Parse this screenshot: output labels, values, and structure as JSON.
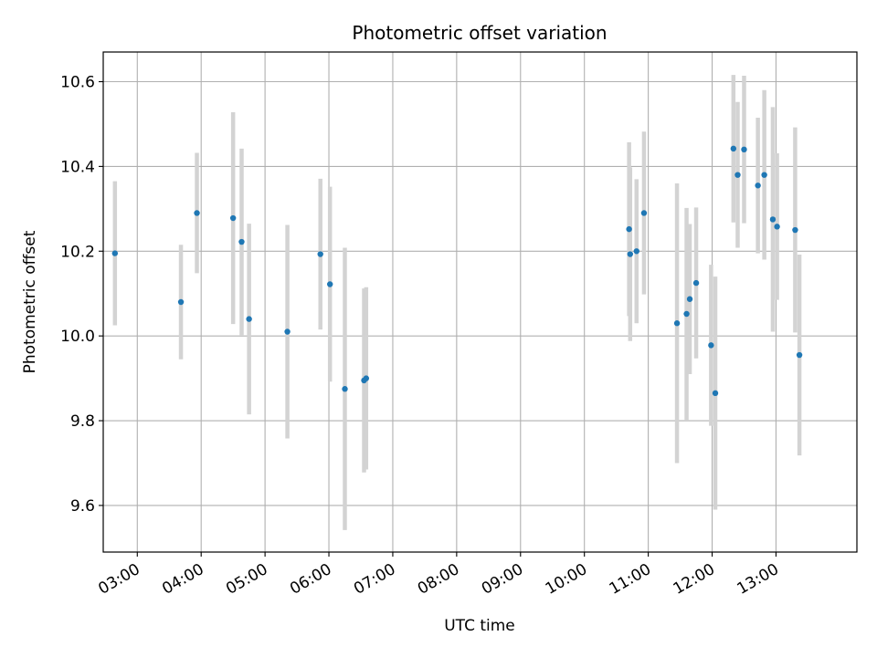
{
  "chart_data": {
    "type": "scatter",
    "title": "Photometric offset variation",
    "xlabel": "UTC time",
    "ylabel": "Photometric offset",
    "x_unit": "UTC hours of the day",
    "xlim": [
      "02:28",
      "14:16"
    ],
    "ylim": [
      9.49,
      10.67
    ],
    "x_ticks": [
      "03:00",
      "04:00",
      "05:00",
      "06:00",
      "07:00",
      "08:00",
      "09:00",
      "10:00",
      "11:00",
      "12:00",
      "13:00"
    ],
    "y_ticks": [
      "9.6",
      "9.8",
      "10.0",
      "10.2",
      "10.4",
      "10.6"
    ],
    "grid": true,
    "marker_color": "#1f77b4",
    "errorbar_color": "#d3d3d3",
    "points": [
      {
        "x": "02:39",
        "y": 10.195,
        "err_low": 10.025,
        "err_high": 10.365
      },
      {
        "x": "03:41",
        "y": 10.08,
        "err_low": 9.945,
        "err_high": 10.215
      },
      {
        "x": "03:56",
        "y": 10.29,
        "err_low": 10.148,
        "err_high": 10.432
      },
      {
        "x": "04:30",
        "y": 10.278,
        "err_low": 10.028,
        "err_high": 10.528
      },
      {
        "x": "04:38",
        "y": 10.222,
        "err_low": 10.002,
        "err_high": 10.442
      },
      {
        "x": "04:45",
        "y": 10.04,
        "err_low": 9.815,
        "err_high": 10.265
      },
      {
        "x": "05:21",
        "y": 10.01,
        "err_low": 9.758,
        "err_high": 10.262
      },
      {
        "x": "05:52",
        "y": 10.193,
        "err_low": 10.015,
        "err_high": 10.371
      },
      {
        "x": "06:01",
        "y": 10.122,
        "err_low": 9.892,
        "err_high": 10.352
      },
      {
        "x": "06:15",
        "y": 9.875,
        "err_low": 9.542,
        "err_high": 10.208
      },
      {
        "x": "06:33",
        "y": 9.895,
        "err_low": 9.678,
        "err_high": 10.112
      },
      {
        "x": "06:35",
        "y": 9.9,
        "err_low": 9.685,
        "err_high": 10.115
      },
      {
        "x": "10:42",
        "y": 10.252,
        "err_low": 10.047,
        "err_high": 10.457
      },
      {
        "x": "10:43",
        "y": 10.193,
        "err_low": 9.988,
        "err_high": 10.398
      },
      {
        "x": "10:49",
        "y": 10.2,
        "err_low": 10.03,
        "err_high": 10.37
      },
      {
        "x": "10:56",
        "y": 10.29,
        "err_low": 10.098,
        "err_high": 10.482
      },
      {
        "x": "11:27",
        "y": 10.03,
        "err_low": 9.7,
        "err_high": 10.36
      },
      {
        "x": "11:36",
        "y": 10.052,
        "err_low": 9.802,
        "err_high": 10.302
      },
      {
        "x": "11:39",
        "y": 10.087,
        "err_low": 9.91,
        "err_high": 10.264
      },
      {
        "x": "11:45",
        "y": 10.125,
        "err_low": 9.947,
        "err_high": 10.303
      },
      {
        "x": "11:59",
        "y": 9.978,
        "err_low": 9.788,
        "err_high": 10.168
      },
      {
        "x": "12:03",
        "y": 9.865,
        "err_low": 9.59,
        "err_high": 10.14
      },
      {
        "x": "12:20",
        "y": 10.442,
        "err_low": 10.268,
        "err_high": 10.616
      },
      {
        "x": "12:24",
        "y": 10.38,
        "err_low": 10.208,
        "err_high": 10.552
      },
      {
        "x": "12:30",
        "y": 10.44,
        "err_low": 10.266,
        "err_high": 10.614
      },
      {
        "x": "12:43",
        "y": 10.355,
        "err_low": 10.195,
        "err_high": 10.515
      },
      {
        "x": "12:49",
        "y": 10.38,
        "err_low": 10.18,
        "err_high": 10.58
      },
      {
        "x": "12:57",
        "y": 10.275,
        "err_low": 10.01,
        "err_high": 10.54
      },
      {
        "x": "13:01",
        "y": 10.258,
        "err_low": 10.085,
        "err_high": 10.431
      },
      {
        "x": "13:18",
        "y": 10.25,
        "err_low": 10.008,
        "err_high": 10.492
      },
      {
        "x": "13:22",
        "y": 9.955,
        "err_low": 9.718,
        "err_high": 10.192
      }
    ]
  }
}
